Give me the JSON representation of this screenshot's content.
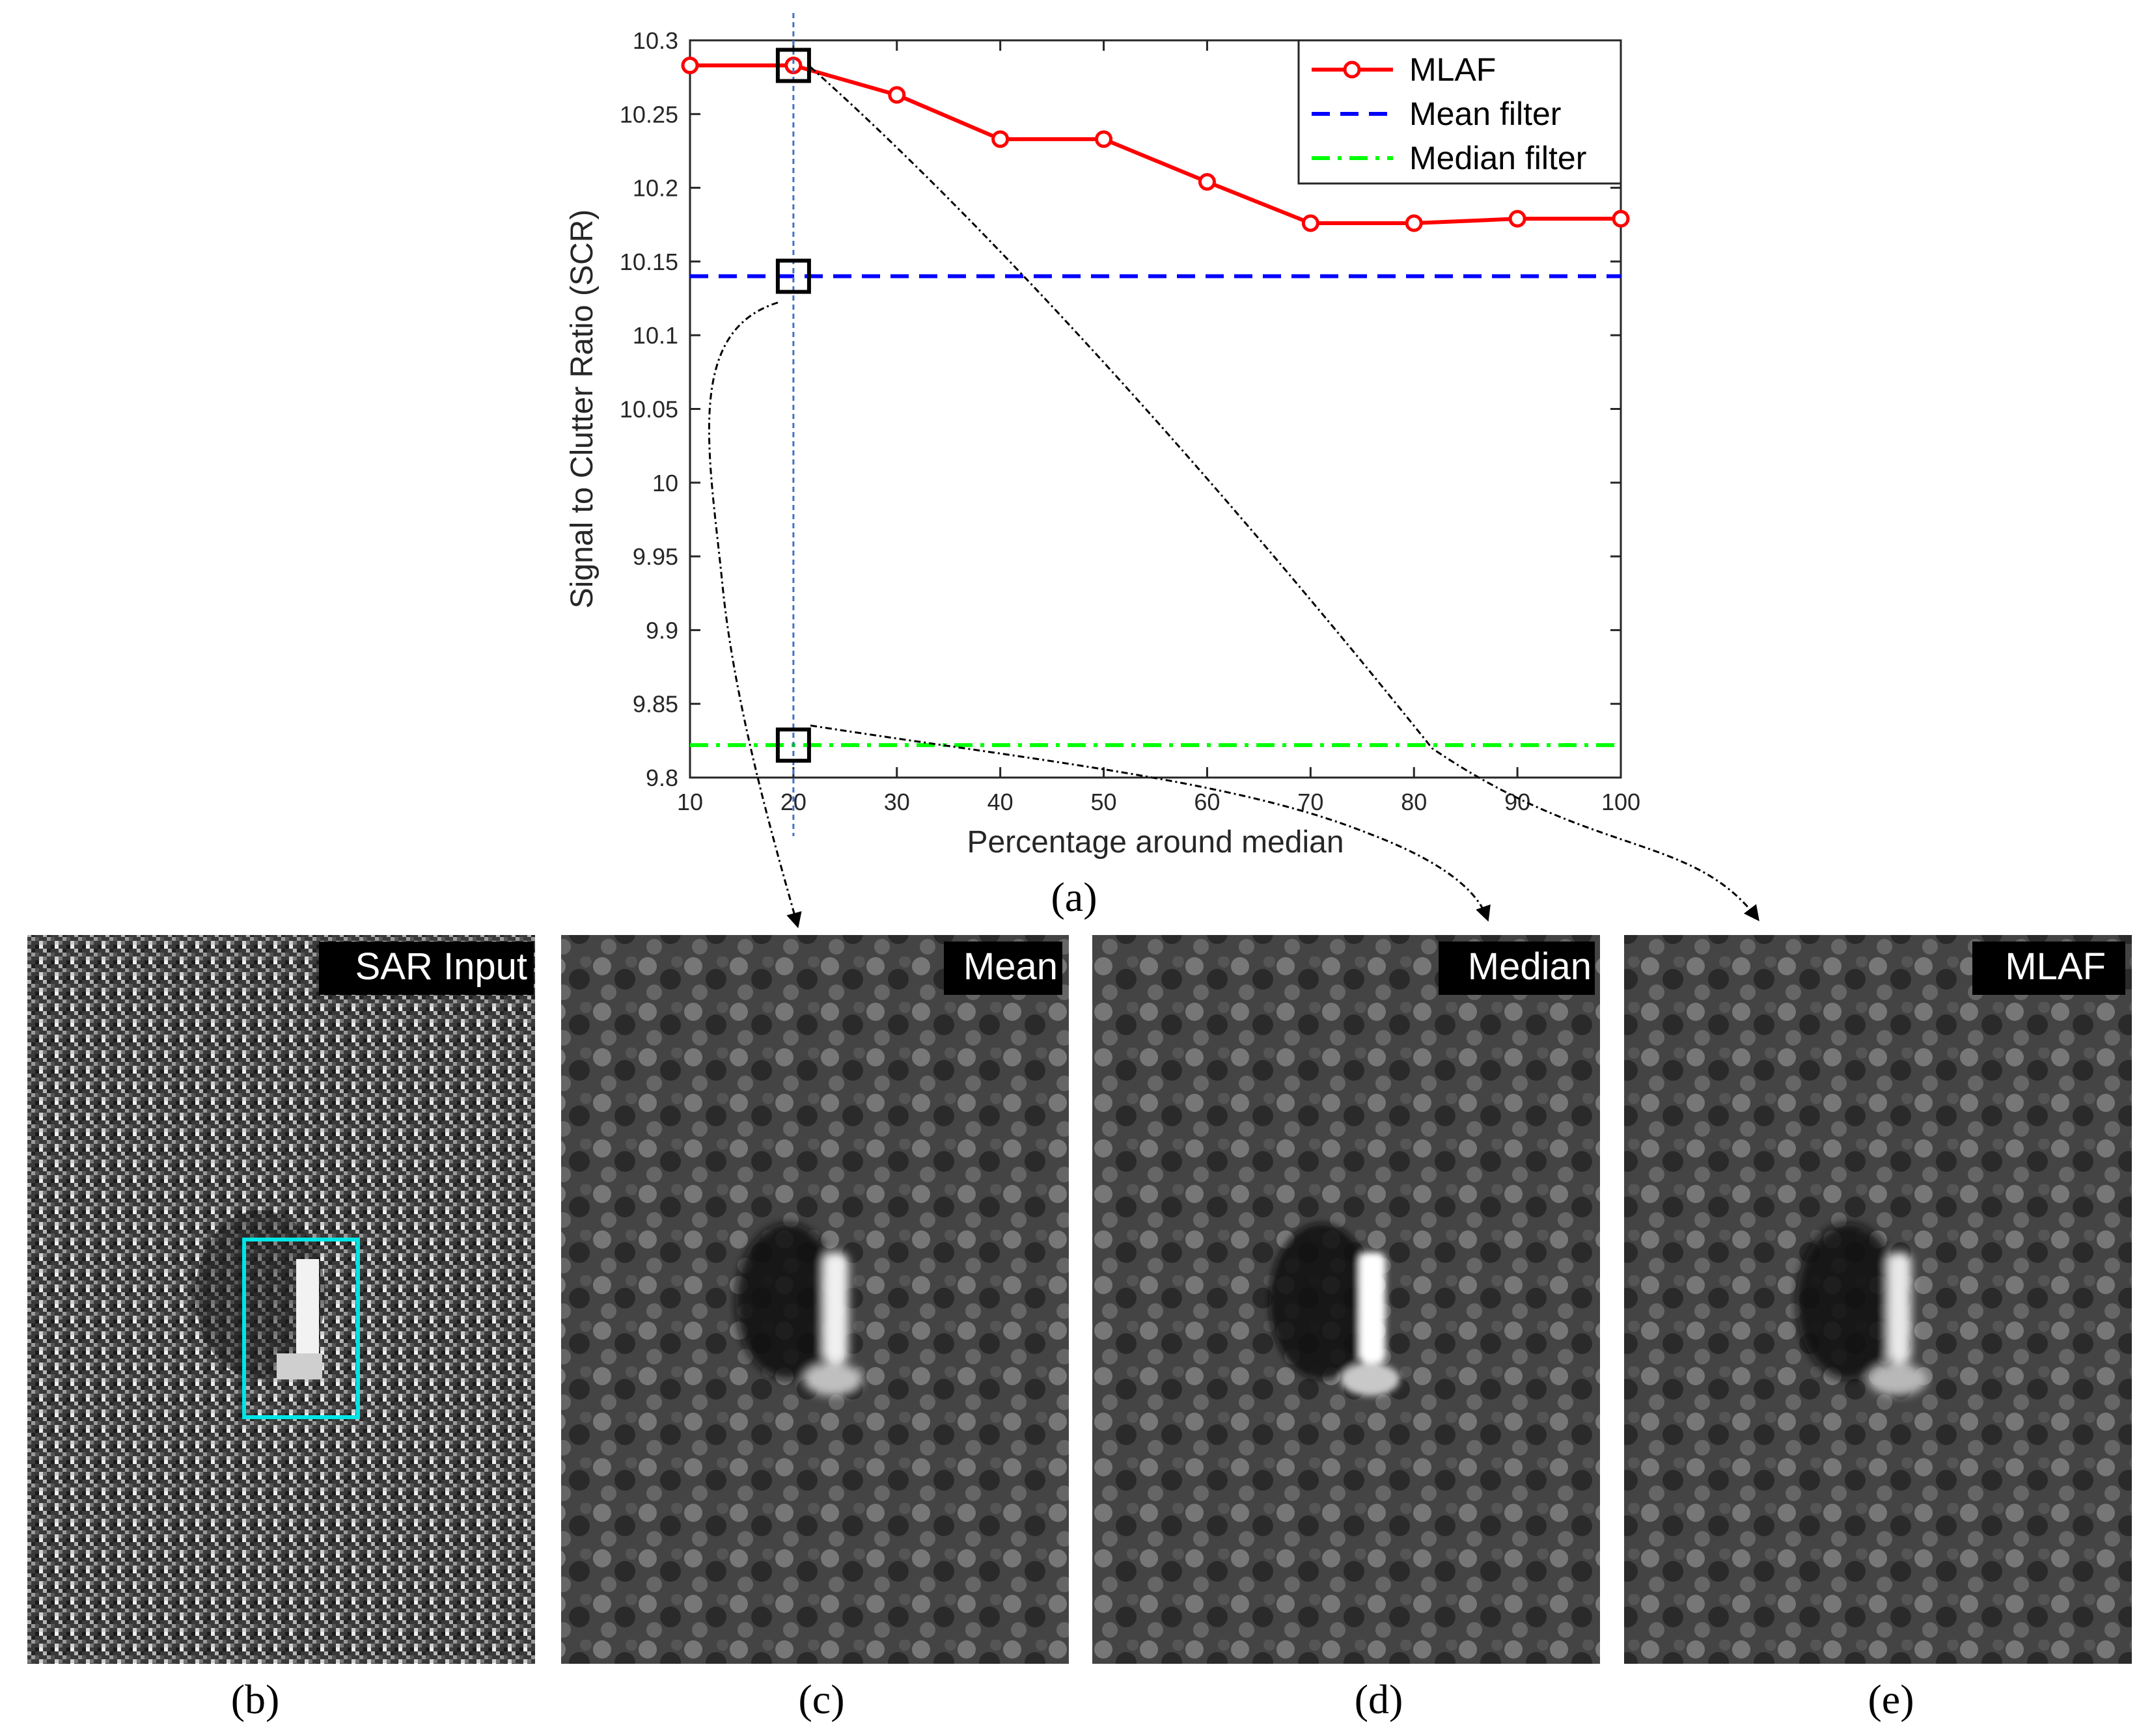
{
  "chart_data": {
    "type": "line",
    "xlabel": "Percentage around median",
    "ylabel": "Signal to Clutter Ratio (SCR)",
    "xlim": [
      10,
      100
    ],
    "ylim": [
      9.8,
      10.3
    ],
    "xticks": [
      "10",
      "20",
      "30",
      "40",
      "50",
      "60",
      "70",
      "80",
      "90",
      "100"
    ],
    "yticks": [
      "9.8",
      "9.85",
      "9.9",
      "9.95",
      "10",
      "10.05",
      "10.1",
      "10.15",
      "10.2",
      "10.25",
      "10.3"
    ],
    "x": [
      10,
      20,
      30,
      40,
      50,
      60,
      70,
      80,
      90,
      100
    ],
    "series": [
      {
        "name": "MLAF",
        "style": "solid-circle",
        "color": "#ff0000",
        "values": [
          10.283,
          10.283,
          10.263,
          10.233,
          10.233,
          10.204,
          10.176,
          10.176,
          10.179,
          10.179
        ]
      },
      {
        "name": "Mean filter",
        "style": "dashed",
        "color": "#0000ff",
        "values": [
          10.14,
          10.14,
          10.14,
          10.14,
          10.14,
          10.14,
          10.14,
          10.14,
          10.14,
          10.14
        ]
      },
      {
        "name": "Median filter",
        "style": "dash-dot",
        "color": "#00ff00",
        "values": [
          9.822,
          9.822,
          9.822,
          9.822,
          9.822,
          9.822,
          9.822,
          9.822,
          9.822,
          9.822
        ]
      }
    ],
    "marker_line_x": 20,
    "highlight_points": [
      {
        "series": "MLAF",
        "x": 20,
        "y": 10.283
      },
      {
        "series": "Mean filter",
        "x": 20,
        "y": 10.14
      },
      {
        "series": "Median filter",
        "x": 20,
        "y": 9.822
      }
    ],
    "legend_position": "top-right",
    "grid": false
  },
  "captions": {
    "a": "(a)",
    "b": "(b)",
    "c": "(c)",
    "d": "(d)",
    "e": "(e)"
  },
  "panels": {
    "b": "SAR Input",
    "c": "Mean",
    "d": "Median",
    "e": "MLAF"
  },
  "colors": {
    "box_highlight": "#000000",
    "target_box": "#00e5e5",
    "vline": "#4472c4"
  }
}
